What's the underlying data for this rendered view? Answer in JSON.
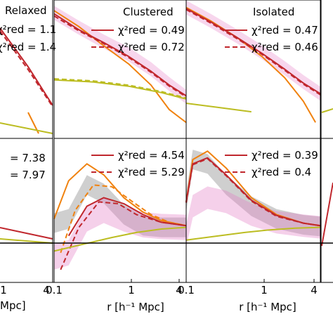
{
  "chart_data": [
    {
      "panel": "top-left",
      "type": "line",
      "title": "Relaxed",
      "stats": [
        {
          "label": "χ²red = 1.1",
          "style": "solid"
        },
        {
          "label": "χ²red = 1.4",
          "style": "dashed"
        }
      ]
    },
    {
      "panel": "top-middle",
      "type": "line",
      "title": "Clustered",
      "legend": [
        {
          "label": "χ²red = 0.49",
          "style": "solid"
        },
        {
          "label": "χ²red = 0.72",
          "style": "dashed"
        }
      ],
      "series": [
        {
          "color": "#f0820f",
          "style": "solid",
          "x": [
            0.1,
            0.2,
            0.4,
            0.8,
            1.5,
            2.5,
            4
          ],
          "y": [
            0.95,
            0.8,
            0.62,
            0.45,
            0.25,
            0.02,
            -0.1
          ]
        },
        {
          "color": "#c0272d",
          "style": "solid",
          "x": [
            0.1,
            0.2,
            0.4,
            0.8,
            1.5,
            2.5,
            4
          ],
          "y": [
            0.92,
            0.77,
            0.65,
            0.52,
            0.38,
            0.25,
            0.15
          ]
        },
        {
          "color": "#c0272d",
          "style": "dashed",
          "x": [
            0.1,
            0.2,
            0.4,
            0.8,
            1.5,
            2.5,
            4
          ],
          "y": [
            0.9,
            0.76,
            0.64,
            0.51,
            0.37,
            0.24,
            0.14
          ]
        },
        {
          "color": "#bcbd22",
          "style": "solid",
          "x": [
            0.1,
            0.3,
            0.8,
            2,
            4
          ],
          "y": [
            0.3,
            0.28,
            0.24,
            0.18,
            0.12
          ]
        },
        {
          "color": "#bcbd22",
          "style": "dashed",
          "x": [
            0.1,
            0.3,
            0.8,
            2,
            4
          ],
          "y": [
            0.31,
            0.29,
            0.25,
            0.19,
            0.13
          ]
        }
      ]
    },
    {
      "panel": "top-right",
      "type": "line",
      "title": "Isolated",
      "legend": [
        {
          "label": "χ²red = 0.47",
          "style": "solid"
        },
        {
          "label": "χ²red = 0.46",
          "style": "dashed"
        }
      ],
      "series": [
        {
          "color": "#f0820f",
          "style": "solid",
          "x": [
            0.1,
            0.2,
            0.4,
            0.8,
            1.5,
            2.5,
            3.5
          ],
          "y": [
            0.98,
            0.85,
            0.7,
            0.52,
            0.32,
            0.1,
            -0.1
          ]
        },
        {
          "color": "#c0272d",
          "style": "solid",
          "x": [
            0.1,
            0.2,
            0.4,
            0.8,
            1.5,
            2.5,
            4
          ],
          "y": [
            0.97,
            0.84,
            0.7,
            0.55,
            0.4,
            0.27,
            0.17
          ]
        },
        {
          "color": "#c0272d",
          "style": "dashed",
          "x": [
            0.1,
            0.2,
            0.4,
            0.8,
            1.5,
            2.5,
            4
          ],
          "y": [
            0.96,
            0.83,
            0.69,
            0.54,
            0.39,
            0.26,
            0.16
          ]
        },
        {
          "color": "#bcbd22",
          "style": "solid",
          "x": [
            0.1,
            0.25,
            0.6
          ],
          "y": [
            0.08,
            0.04,
            0.0
          ]
        }
      ]
    },
    {
      "panel": "bottom-left",
      "type": "line",
      "stats": [
        {
          "label": "= 7.38",
          "style": "solid"
        },
        {
          "label": "= 7.97",
          "style": "dashed"
        }
      ],
      "xticks": [
        "1",
        "4"
      ],
      "xlabel": "Mpc]"
    },
    {
      "panel": "bottom-middle",
      "type": "line",
      "legend": [
        {
          "label": "χ²red = 4.54",
          "style": "solid"
        },
        {
          "label": "χ²red = 5.29",
          "style": "dashed"
        }
      ],
      "xticks": [
        "0.1",
        "1",
        "4"
      ],
      "xlabel": "r [h⁻¹ Mpc]",
      "series": [
        {
          "color": "#f0820f",
          "style": "solid",
          "x": [
            0.1,
            0.15,
            0.25,
            0.4,
            0.7,
            1.2,
            2,
            4
          ],
          "y": [
            0.1,
            0.55,
            0.75,
            0.62,
            0.35,
            0.18,
            0.08,
            0.02
          ]
        },
        {
          "color": "#f0820f",
          "style": "dashed",
          "x": [
            0.12,
            0.18,
            0.3,
            0.5,
            0.9,
            1.5,
            2.5,
            4
          ],
          "y": [
            -0.3,
            0.2,
            0.5,
            0.48,
            0.3,
            0.15,
            0.06,
            0.02
          ]
        },
        {
          "color": "#c0272d",
          "style": "solid",
          "x": [
            0.15,
            0.25,
            0.4,
            0.7,
            1.2,
            2,
            4
          ],
          "y": [
            -0.1,
            0.25,
            0.35,
            0.28,
            0.15,
            0.06,
            0.02
          ]
        },
        {
          "color": "#c0272d",
          "style": "dashed",
          "x": [
            0.12,
            0.2,
            0.35,
            0.6,
            1,
            2,
            4
          ],
          "y": [
            -0.5,
            0.0,
            0.3,
            0.28,
            0.15,
            0.06,
            0.02
          ]
        },
        {
          "color": "#bcbd22",
          "style": "solid",
          "x": [
            0.1,
            0.5,
            1,
            2,
            4
          ],
          "y": [
            -0.28,
            -0.12,
            -0.06,
            -0.02,
            0.0
          ]
        }
      ]
    },
    {
      "panel": "bottom-right",
      "type": "line",
      "legend": [
        {
          "label": "χ²red = 0.39",
          "style": "solid"
        },
        {
          "label": "χ²red = 0.4",
          "style": "dashed"
        }
      ],
      "xticks": [
        "0.1",
        "1",
        "4"
      ],
      "xlabel": "r [h⁻¹ Mpc]",
      "series": [
        {
          "color": "#f0820f",
          "style": "solid",
          "x": [
            0.1,
            0.12,
            0.18,
            0.3,
            0.6,
            1.2,
            2.5,
            4
          ],
          "y": [
            0.3,
            0.8,
            0.9,
            0.7,
            0.35,
            0.15,
            0.05,
            0.02
          ]
        },
        {
          "color": "#c0272d",
          "style": "solid",
          "x": [
            0.1,
            0.12,
            0.18,
            0.3,
            0.6,
            1.2,
            2.5,
            4
          ],
          "y": [
            0.3,
            0.75,
            0.82,
            0.62,
            0.32,
            0.14,
            0.05,
            0.02
          ]
        },
        {
          "color": "#c0272d",
          "style": "dashed",
          "x": [
            0.1,
            0.12,
            0.18,
            0.3,
            0.6,
            1.2,
            2.5,
            4
          ],
          "y": [
            0.29,
            0.74,
            0.81,
            0.61,
            0.31,
            0.13,
            0.05,
            0.02
          ]
        },
        {
          "color": "#bcbd22",
          "style": "solid",
          "x": [
            0.1,
            0.5,
            1,
            2,
            4
          ],
          "y": [
            -0.15,
            -0.06,
            -0.03,
            -0.01,
            0.0
          ]
        }
      ]
    }
  ]
}
